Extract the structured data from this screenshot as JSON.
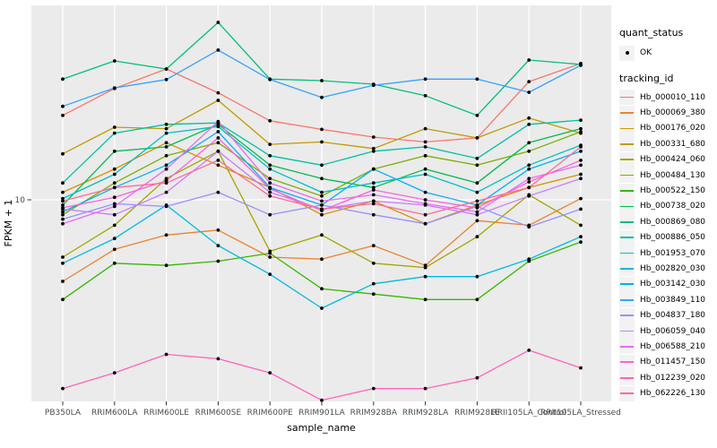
{
  "panel": {
    "background": "#EBEBEB",
    "grid_color": "#FFFFFF",
    "point_color": "#000000",
    "tick_color": "#333333",
    "axis_text_color": "#4D4D4D"
  },
  "legend": {
    "quant_status": {
      "title": "quant_status",
      "items": [
        {
          "label": "OK",
          "key": "black-point"
        }
      ]
    },
    "tracking_id_title": "tracking_id"
  },
  "chart_data": {
    "type": "line",
    "title": "",
    "xlabel": "sample_name",
    "ylabel": "FPKM + 1",
    "y_scale": "log10",
    "y_breaks": [
      10
    ],
    "y_tick_labels": [
      "10"
    ],
    "ylim": [
      2.05,
      45
    ],
    "grid": "major-only",
    "legend_position": "right",
    "categories": [
      "PB350LA",
      "RRIM600LA",
      "RRIM600LE",
      "RRIM600SE",
      "RRIM600PE",
      "RRIM901LA",
      "RRIM928BA",
      "RRIM928LA",
      "RRIM928LE",
      "RRII105LA_Control",
      "RRII105LA_Stressed"
    ],
    "series": [
      {
        "name": "Hb_000010_110",
        "color": "#F8766D",
        "values": [
          19.3,
          23.8,
          27.7,
          23.0,
          18.5,
          17.3,
          16.3,
          15.7,
          16.2,
          25.1,
          28.9
        ]
      },
      {
        "name": "Hb_000069_380",
        "color": "#EA8331",
        "values": [
          5.3,
          6.8,
          7.6,
          7.9,
          6.4,
          6.3,
          7.0,
          6.0,
          8.5,
          8.2,
          10.1
        ]
      },
      {
        "name": "Hb_000176_020",
        "color": "#D89000",
        "values": [
          10.6,
          12.7,
          15.6,
          13.1,
          11.0,
          8.9,
          9.9,
          8.3,
          9.6,
          11.0,
          12.2
        ]
      },
      {
        "name": "Hb_000331_680",
        "color": "#C09B00",
        "values": [
          14.3,
          17.6,
          17.4,
          21.7,
          15.4,
          15.7,
          14.9,
          17.4,
          16.2,
          18.9,
          16.8
        ]
      },
      {
        "name": "Hb_000424_060",
        "color": "#A3A500",
        "values": [
          6.4,
          8.2,
          11.8,
          14.6,
          6.7,
          7.6,
          6.1,
          5.9,
          7.5,
          10.4,
          8.2
        ]
      },
      {
        "name": "Hb_000484_130",
        "color": "#7CAE00",
        "values": [
          8.9,
          11.4,
          14.1,
          15.6,
          11.8,
          10.3,
          12.7,
          14.1,
          13.1,
          14.6,
          17.0
        ]
      },
      {
        "name": "Hb_000522_150",
        "color": "#39B600",
        "values": [
          4.6,
          6.1,
          6.0,
          6.2,
          6.6,
          5.0,
          4.8,
          4.6,
          4.6,
          6.2,
          7.2
        ]
      },
      {
        "name": "Hb_000738_020",
        "color": "#00BB4E",
        "values": [
          9.6,
          14.6,
          15.1,
          18.0,
          13.1,
          11.8,
          11.0,
          12.7,
          11.4,
          15.6,
          17.4
        ]
      },
      {
        "name": "Hb_000869_080",
        "color": "#00BF7D",
        "values": [
          25.6,
          29.5,
          27.7,
          39.8,
          25.6,
          25.3,
          24.6,
          22.5,
          19.3,
          29.7,
          28.7
        ]
      },
      {
        "name": "Hb_000886_050",
        "color": "#00C1A3",
        "values": [
          11.4,
          16.8,
          18.0,
          18.2,
          14.1,
          13.1,
          14.6,
          15.1,
          13.8,
          18.0,
          18.6
        ]
      },
      {
        "name": "Hb_001953_070",
        "color": "#00BFC4",
        "values": [
          10.1,
          12.2,
          16.8,
          17.7,
          12.7,
          10.6,
          11.4,
          12.2,
          10.6,
          13.1,
          15.3
        ]
      },
      {
        "name": "Hb_002820_030",
        "color": "#00BAE0",
        "values": [
          6.1,
          7.4,
          9.6,
          7.0,
          5.6,
          4.3,
          5.2,
          5.5,
          5.5,
          6.3,
          7.5
        ]
      },
      {
        "name": "Hb_003142_030",
        "color": "#00B0F6",
        "values": [
          9.1,
          11.0,
          13.1,
          17.0,
          11.0,
          9.6,
          12.7,
          10.6,
          9.6,
          12.7,
          14.6
        ]
      },
      {
        "name": "Hb_003849_110",
        "color": "#35A2FF",
        "values": [
          20.7,
          23.9,
          25.5,
          32.1,
          25.5,
          22.2,
          24.4,
          25.6,
          25.6,
          23.1,
          28.5
        ]
      },
      {
        "name": "Hb_004837_180",
        "color": "#9590FF",
        "values": [
          8.6,
          9.7,
          9.5,
          10.6,
          8.9,
          9.6,
          8.9,
          8.3,
          9.5,
          8.1,
          9.3
        ]
      },
      {
        "name": "Hb_006059_040",
        "color": "#C77CFF",
        "values": [
          9.3,
          8.9,
          10.6,
          14.6,
          10.6,
          9.3,
          9.9,
          9.6,
          8.9,
          10.3,
          11.8
        ]
      },
      {
        "name": "Hb_006588_210",
        "color": "#E76BF3",
        "values": [
          8.3,
          9.5,
          12.7,
          18.4,
          11.4,
          9.9,
          10.4,
          9.7,
          9.1,
          11.8,
          13.1
        ]
      },
      {
        "name": "Hb_011457_150",
        "color": "#FA62DB",
        "values": [
          9.4,
          10.2,
          11.6,
          16.2,
          10.9,
          9.2,
          10.8,
          10.0,
          9.4,
          11.5,
          13.6
        ]
      },
      {
        "name": "Hb_012239_020",
        "color": "#FF62BC",
        "values": [
          2.3,
          2.6,
          3.0,
          2.9,
          2.6,
          2.1,
          2.3,
          2.3,
          2.5,
          3.1,
          2.7
        ]
      },
      {
        "name": "Hb_062226_130",
        "color": "#FF6A98",
        "values": [
          9.9,
          11.0,
          11.4,
          13.6,
          10.3,
          9.3,
          9.7,
          8.9,
          9.9,
          11.0,
          15.1
        ]
      }
    ]
  }
}
